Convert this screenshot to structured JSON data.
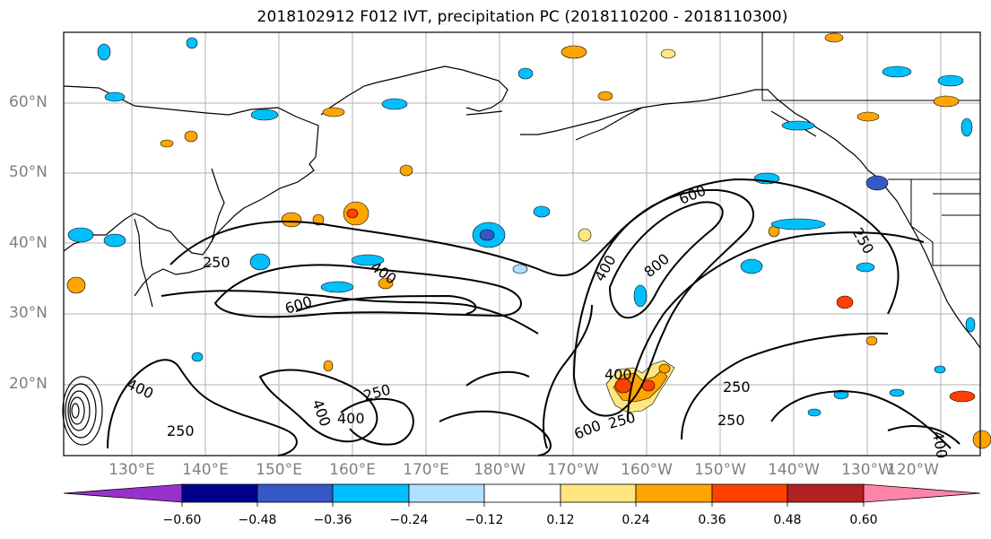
{
  "title": "2018102912 F012 IVT, precipitation PC (2018110200 - 2018110300)",
  "lat_labels": [
    "60°N",
    "50°N",
    "40°N",
    "30°N",
    "20°N"
  ],
  "lon_labels": [
    "130°E",
    "140°E",
    "150°E",
    "160°E",
    "170°E",
    "180°W",
    "170°W",
    "160°W",
    "150°W",
    "140°W",
    "130°W",
    "120°W"
  ],
  "contour_labels": [
    "250",
    "600",
    "400",
    "600",
    "400",
    "800",
    "250",
    "400",
    "400",
    "250",
    "400",
    "250",
    "400",
    "250",
    "600",
    "250",
    "250",
    "400"
  ],
  "colorbar": {
    "ticks": [
      "−0.60",
      "−0.48",
      "−0.36",
      "−0.24",
      "−0.12",
      "0.12",
      "0.24",
      "0.36",
      "0.48",
      "0.60"
    ],
    "colors": [
      "#9932cc",
      "#00008b",
      "#3557c8",
      "#00bfff",
      "#afe0ff",
      "#ffffff",
      "#ffe680",
      "#ffa500",
      "#ff4000",
      "#b22222",
      "#ff85a8"
    ]
  },
  "colors": {
    "positive_low": "#ffe680",
    "positive_mid": "#ffa500",
    "positive_high": "#ff4000",
    "negative_low": "#afe0ff",
    "negative_mid": "#00bfff",
    "negative_high": "#3557c8",
    "gridline": "#b0b0b0",
    "ivt_contour": "#000000"
  }
}
